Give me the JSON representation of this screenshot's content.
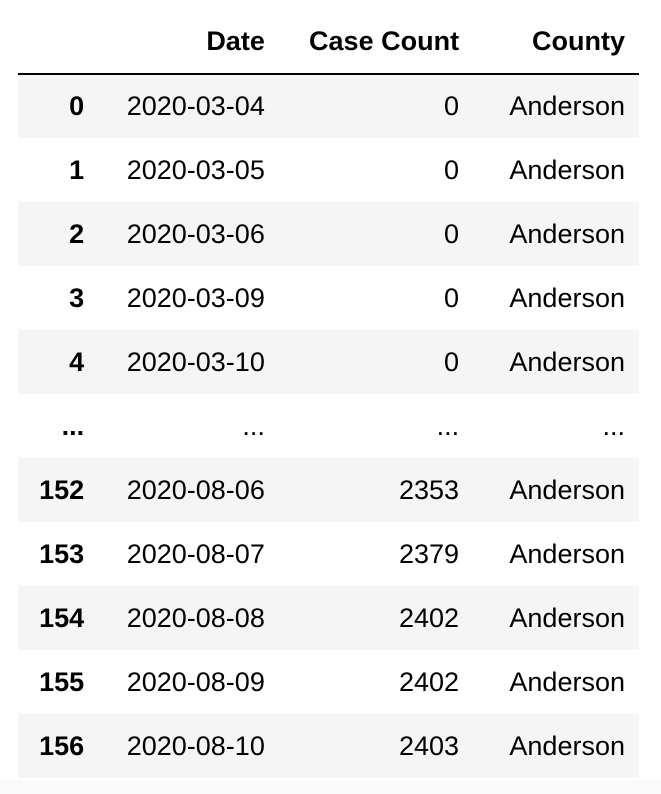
{
  "table": {
    "columns": [
      "",
      "Date",
      "Case Count",
      "County"
    ],
    "rows": [
      {
        "index": "0",
        "date": "2020-03-04",
        "case_count": "0",
        "county": "Anderson"
      },
      {
        "index": "1",
        "date": "2020-03-05",
        "case_count": "0",
        "county": "Anderson"
      },
      {
        "index": "2",
        "date": "2020-03-06",
        "case_count": "0",
        "county": "Anderson"
      },
      {
        "index": "3",
        "date": "2020-03-09",
        "case_count": "0",
        "county": "Anderson"
      },
      {
        "index": "4",
        "date": "2020-03-10",
        "case_count": "0",
        "county": "Anderson"
      },
      {
        "index": "...",
        "date": "...",
        "case_count": "...",
        "county": "..."
      },
      {
        "index": "152",
        "date": "2020-08-06",
        "case_count": "2353",
        "county": "Anderson"
      },
      {
        "index": "153",
        "date": "2020-08-07",
        "case_count": "2379",
        "county": "Anderson"
      },
      {
        "index": "154",
        "date": "2020-08-08",
        "case_count": "2402",
        "county": "Anderson"
      },
      {
        "index": "155",
        "date": "2020-08-09",
        "case_count": "2402",
        "county": "Anderson"
      },
      {
        "index": "156",
        "date": "2020-08-10",
        "case_count": "2403",
        "county": "Anderson"
      }
    ]
  },
  "colors": {
    "stripe_row": "#f5f5f5",
    "header_rule": "#000000"
  }
}
